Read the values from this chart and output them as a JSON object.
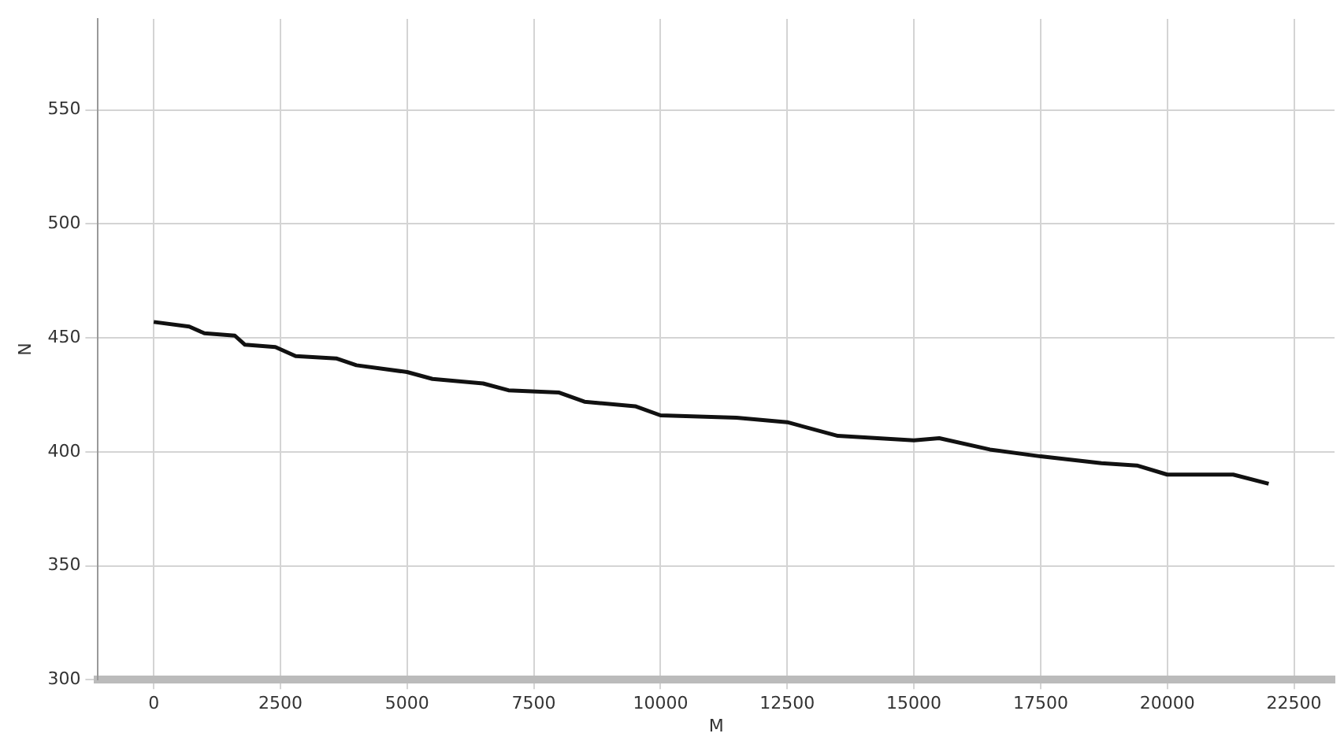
{
  "chart_data": {
    "type": "line",
    "xlabel": "M",
    "ylabel": "N",
    "x": [
      0,
      700,
      1000,
      1600,
      1800,
      2400,
      2800,
      3600,
      4000,
      5000,
      5500,
      6500,
      7000,
      8000,
      8500,
      9500,
      10000,
      11500,
      12500,
      13500,
      15000,
      15500,
      16500,
      17500,
      18700,
      19400,
      20000,
      21300,
      22000
    ],
    "series": [
      {
        "color": "#111111",
        "values": [
          457,
          455,
          452,
          451,
          447,
          446,
          442,
          441,
          438,
          435,
          432,
          430,
          427,
          426,
          422,
          420,
          416,
          415,
          413,
          407,
          405,
          406,
          401,
          398,
          395,
          394,
          390,
          390,
          386
        ]
      }
    ],
    "xlim": [
      -1100,
      23300
    ],
    "xticks": [
      0,
      2500,
      5000,
      7500,
      10000,
      12500,
      15000,
      17500,
      20000,
      22500
    ],
    "ylim": [
      300,
      590
    ],
    "yticks": [
      300,
      350,
      400,
      450,
      500,
      550
    ],
    "grid": true,
    "marker": "none",
    "line_style": "solid"
  }
}
